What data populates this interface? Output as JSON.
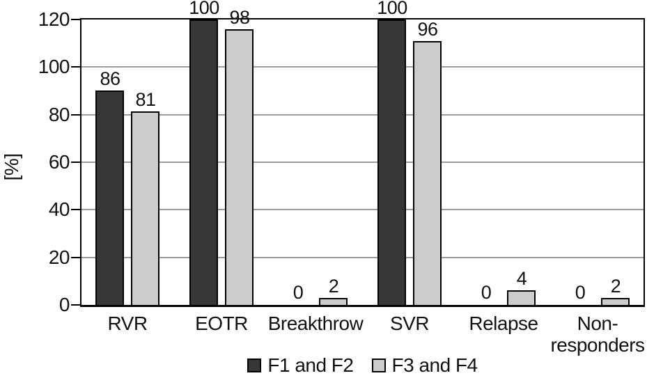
{
  "chart_data": {
    "type": "bar",
    "title": "",
    "xlabel": "",
    "ylabel": "[%]",
    "ylim": [
      0,
      120
    ],
    "ytick_labels": [
      "0",
      "20",
      "40",
      "60",
      "80",
      "100",
      "120"
    ],
    "grid": "horizontal-gray-lines",
    "legend_position": "bottom-center",
    "plot_border": "full box, black",
    "categories": [
      "RVR",
      "EOTR",
      "Breakthrow",
      "SVR",
      "Relapse",
      "Non-\nresponders"
    ],
    "series": [
      {
        "name": "F1 and F2",
        "color": "#373737",
        "values": [
          86,
          100,
          0,
          100,
          0,
          0
        ]
      },
      {
        "name": "F3 and F4",
        "color": "#cccccc",
        "values": [
          81,
          98,
          2,
          96,
          4,
          2
        ]
      }
    ],
    "drawn_heights_axis_units": [
      [
        90,
        120,
        0,
        120,
        0,
        0
      ],
      [
        81.5,
        116,
        3,
        111,
        6,
        3
      ]
    ],
    "colors": {
      "bar_dark": "#373737",
      "bar_light": "#cccccc",
      "bar_border": "#000000",
      "gridline": "#9b9b9b",
      "axis": "#000000",
      "background": "#ffffff"
    }
  }
}
